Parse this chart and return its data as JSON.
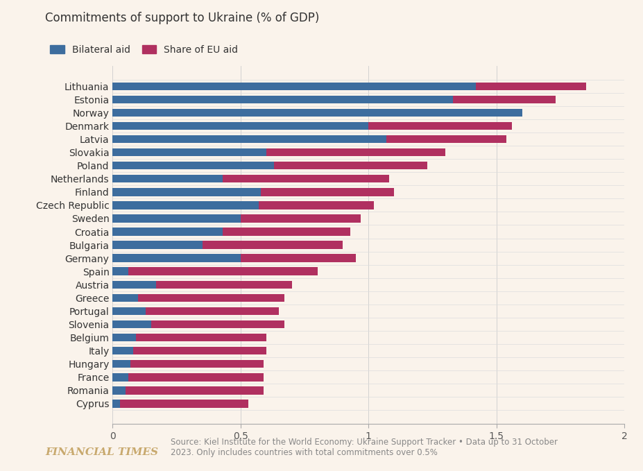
{
  "title": "Commitments of support to Ukraine (% of GDP)",
  "background_color": "#faf3eb",
  "bilateral_color": "#3d6d9e",
  "eu_color": "#b03060",
  "categories": [
    "Lithuania",
    "Estonia",
    "Norway",
    "Denmark",
    "Latvia",
    "Slovakia",
    "Poland",
    "Netherlands",
    "Finland",
    "Czech Republic",
    "Sweden",
    "Croatia",
    "Bulgaria",
    "Germany",
    "Spain",
    "Austria",
    "Greece",
    "Portugal",
    "Slovenia",
    "Belgium",
    "Italy",
    "Hungary",
    "France",
    "Romania",
    "Cyprus"
  ],
  "bilateral": [
    1.42,
    1.33,
    1.6,
    1.0,
    1.07,
    0.6,
    0.63,
    0.43,
    0.58,
    0.57,
    0.5,
    0.43,
    0.35,
    0.5,
    0.06,
    0.17,
    0.1,
    0.13,
    0.15,
    0.09,
    0.08,
    0.07,
    0.06,
    0.05,
    0.03
  ],
  "eu_share": [
    0.43,
    0.4,
    0.0,
    0.56,
    0.47,
    0.7,
    0.6,
    0.65,
    0.52,
    0.45,
    0.47,
    0.5,
    0.55,
    0.45,
    0.74,
    0.53,
    0.57,
    0.52,
    0.52,
    0.51,
    0.52,
    0.52,
    0.53,
    0.54,
    0.5
  ],
  "xlim": [
    0,
    2.0
  ],
  "xticks": [
    0,
    0.5,
    1,
    1.5,
    2
  ],
  "legend_bilateral": "Bilateral aid",
  "legend_eu": "Share of EU aid",
  "source_text": "Source: Kiel Institute for the World Economy: Ukraine Support Tracker • Data up to 31 October\n2023. Only includes countries with total commitments over 0.5%",
  "ft_label": "FINANCIAL TIMES"
}
